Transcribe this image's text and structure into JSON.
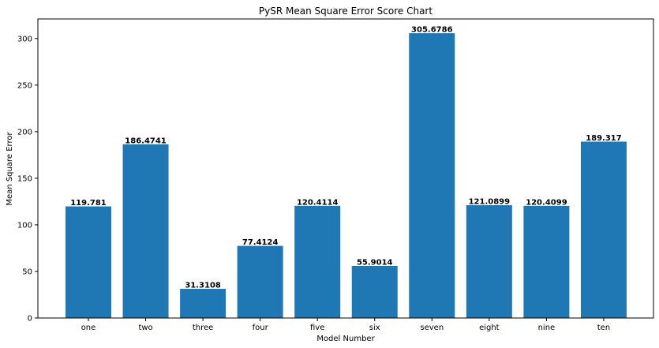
{
  "chart_data": {
    "type": "bar",
    "title": "PySR Mean Square Error Score Chart",
    "xlabel": "Model Number",
    "ylabel": "Mean Square Error",
    "categories": [
      "one",
      "two",
      "three",
      "four",
      "five",
      "six",
      "seven",
      "eight",
      "nine",
      "ten"
    ],
    "values": [
      119.781,
      186.4741,
      31.3108,
      77.4124,
      120.4114,
      55.9014,
      305.6786,
      121.0899,
      120.4099,
      189.317
    ],
    "value_labels": [
      "119.781",
      "186.4741",
      "31.3108",
      "77.4124",
      "120.4114",
      "55.9014",
      "305.6786",
      "121.0899",
      "120.4099",
      "189.317"
    ],
    "yticks": [
      0,
      50,
      100,
      150,
      200,
      250,
      300
    ],
    "ylim": [
      0,
      321
    ],
    "bar_color": "#1f77b4",
    "grid": false,
    "legend": "none"
  }
}
